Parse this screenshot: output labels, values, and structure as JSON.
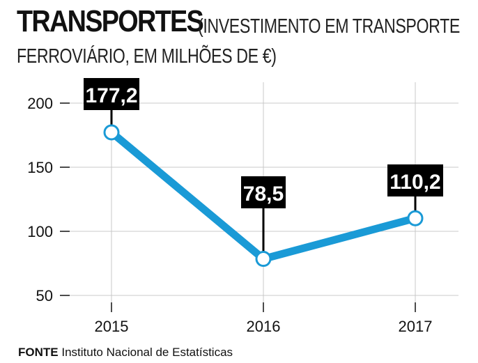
{
  "header": {
    "title": "TRANSPORTES",
    "subtitle_line1": "(INVESTIMENTO EM TRANSPORTE",
    "subtitle_line2": "FERROVIÁRIO, EM MILHÕES DE €)"
  },
  "footer": {
    "source_label": "FONTE",
    "source_text": "Instituto Nacional de Estatísticas"
  },
  "colors": {
    "line": "#1a9ad6",
    "label_bg": "#000000",
    "grid": "#c8c8c8"
  },
  "chart_data": {
    "type": "line",
    "title": "TRANSPORTES",
    "subtitle": "(INVESTIMENTO EM TRANSPORTE FERROVIÁRIO, EM MILHÕES DE €)",
    "xlabel": "",
    "ylabel": "",
    "categories": [
      "2015",
      "2016",
      "2017"
    ],
    "series": [
      {
        "name": "Investimento em transporte ferroviário",
        "values": [
          177.2,
          78.5,
          110.2
        ]
      }
    ],
    "data_labels": [
      "177,2",
      "78,5",
      "110,2"
    ],
    "yticks": [
      50,
      100,
      150,
      200
    ],
    "ytick_labels": [
      "50",
      "100",
      "150",
      "200"
    ],
    "ylim": [
      45,
      210
    ],
    "grid": true
  }
}
